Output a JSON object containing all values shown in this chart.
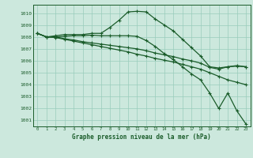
{
  "title": "Graphe pression niveau de la mer (hPa)",
  "bg_color": "#cce8dd",
  "grid_color": "#99ccbb",
  "line_color": "#1a5c2a",
  "xlim": [
    -0.5,
    23.5
  ],
  "ylim": [
    1000.5,
    1010.7
  ],
  "yticks": [
    1001,
    1002,
    1003,
    1004,
    1005,
    1006,
    1007,
    1008,
    1009,
    1010
  ],
  "xticks": [
    0,
    1,
    2,
    3,
    4,
    5,
    6,
    7,
    8,
    9,
    10,
    11,
    12,
    13,
    14,
    15,
    16,
    17,
    18,
    19,
    20,
    21,
    22,
    23
  ],
  "series": [
    {
      "x": [
        0,
        1,
        2,
        3,
        4,
        5,
        6,
        7,
        8,
        9,
        10,
        11,
        12,
        13,
        14,
        15,
        16,
        17,
        18,
        19,
        20,
        21,
        22,
        23
      ],
      "y": [
        1008.3,
        1008.0,
        1008.1,
        1008.2,
        1008.2,
        1008.2,
        1008.3,
        1008.3,
        1008.8,
        1009.4,
        1010.1,
        1010.15,
        1010.1,
        1009.5,
        1009.0,
        1008.5,
        1007.8,
        1007.1,
        1006.4,
        1005.5,
        1005.4,
        1005.5,
        1005.6,
        1005.5
      ]
    },
    {
      "x": [
        0,
        1,
        2,
        3,
        4,
        5,
        6,
        7,
        8,
        9,
        10,
        11,
        12,
        13,
        14,
        15,
        16,
        17,
        18,
        19,
        20,
        21,
        22,
        23
      ],
      "y": [
        1008.3,
        1008.0,
        1008.0,
        1007.85,
        1007.75,
        1007.6,
        1007.5,
        1007.4,
        1007.3,
        1007.2,
        1007.1,
        1007.0,
        1006.85,
        1006.65,
        1006.5,
        1006.35,
        1006.15,
        1006.0,
        1005.8,
        1005.45,
        1005.3,
        1005.5,
        1005.55,
        1005.5
      ]
    },
    {
      "x": [
        0,
        1,
        2,
        3,
        4,
        5,
        6,
        7,
        8,
        9,
        10,
        11,
        12,
        13,
        14,
        15,
        16,
        17,
        18,
        19,
        20,
        21,
        22,
        23
      ],
      "y": [
        1008.3,
        1008.0,
        1007.95,
        1007.8,
        1007.65,
        1007.5,
        1007.35,
        1007.2,
        1007.05,
        1006.9,
        1006.75,
        1006.55,
        1006.4,
        1006.2,
        1006.05,
        1005.9,
        1005.7,
        1005.5,
        1005.3,
        1005.0,
        1004.7,
        1004.4,
        1004.2,
        1004.0
      ]
    },
    {
      "x": [
        0,
        1,
        2,
        3,
        4,
        5,
        6,
        7,
        8,
        9,
        10,
        11,
        12,
        13,
        14,
        15,
        16,
        17,
        18,
        19,
        20,
        21,
        22,
        23
      ],
      "y": [
        1008.3,
        1008.0,
        1008.0,
        1008.05,
        1008.1,
        1008.1,
        1008.15,
        1008.1,
        1008.1,
        1008.1,
        1008.1,
        1008.05,
        1007.7,
        1007.2,
        1006.6,
        1006.1,
        1005.5,
        1004.9,
        1004.4,
        1003.3,
        1002.0,
        1003.3,
        1001.8,
        1000.7
      ]
    }
  ]
}
